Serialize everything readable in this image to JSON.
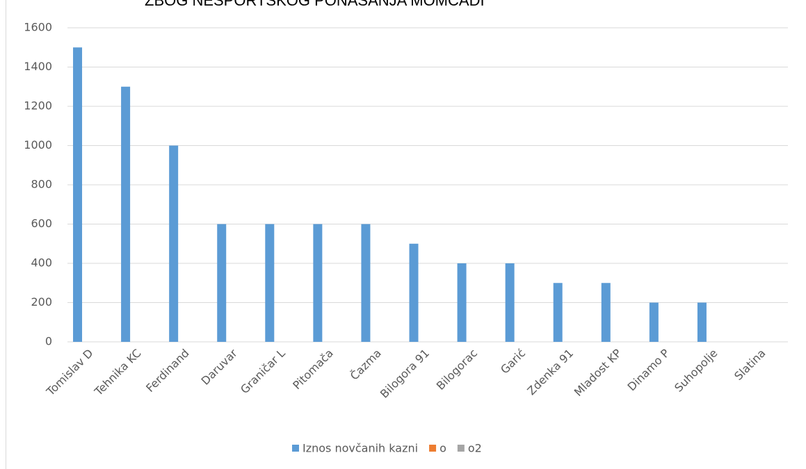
{
  "chart_data": {
    "type": "bar",
    "title": "ZBOG NESPORTSKOG PONAŠANJA MOMČADI",
    "categories": [
      "Tomislav D",
      "Tehnika KC",
      "Ferdinand",
      "Daruvar",
      "Graničar L",
      "Pitomača",
      "Čazma",
      "Bilogora 91",
      "Bilogorac",
      "Garić",
      "Zdenka 91",
      "Mladost KP",
      "Dinamo P",
      "Suhopolje",
      "Slatina"
    ],
    "series": [
      {
        "name": "Iznos novčanih kazni",
        "color": "#5b9bd5",
        "values": [
          1500,
          1300,
          1000,
          600,
          600,
          600,
          600,
          500,
          400,
          400,
          300,
          300,
          200,
          200,
          0
        ]
      },
      {
        "name": "o",
        "color": "#ed7d31",
        "values": [
          null,
          null,
          null,
          null,
          null,
          null,
          null,
          null,
          null,
          null,
          null,
          null,
          null,
          null,
          null
        ]
      },
      {
        "name": "o2",
        "color": "#a5a5a5",
        "values": [
          null,
          null,
          null,
          null,
          null,
          null,
          null,
          null,
          null,
          null,
          null,
          null,
          null,
          null,
          null
        ]
      }
    ],
    "ylim": [
      0,
      1600
    ],
    "yticks": [
      0,
      200,
      400,
      600,
      800,
      1000,
      1200,
      1400,
      1600
    ],
    "grid": true,
    "legend": "bottom"
  }
}
